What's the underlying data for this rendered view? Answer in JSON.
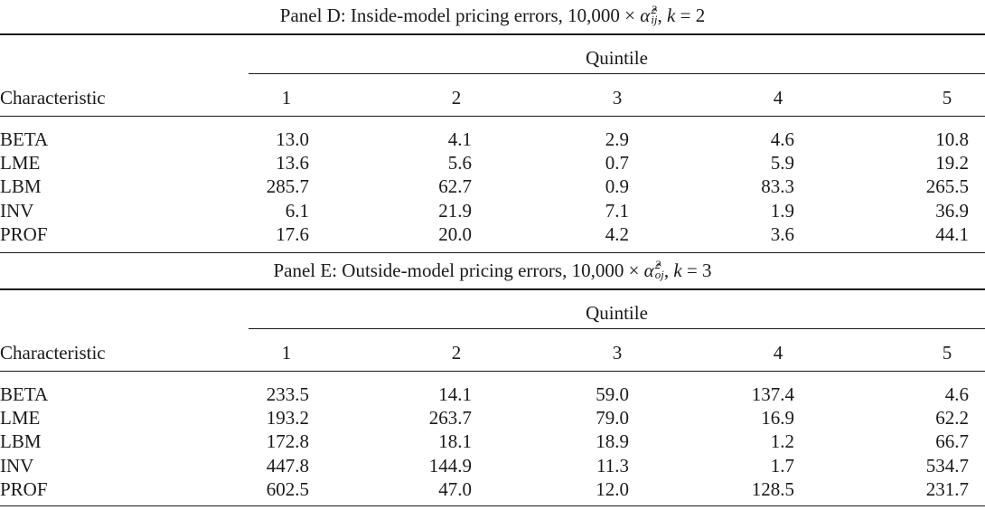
{
  "panels": [
    {
      "title_prefix": "Panel D: Inside-model pricing errors, 10,000 × ",
      "alpha_symbol": "α̂",
      "alpha_sup": "2",
      "alpha_sub": "ij",
      "title_suffix": ", ",
      "k_label": "k",
      "k_eq": " = 2",
      "quintile_header": "Quintile",
      "char_header": "Characteristic",
      "columns": [
        "1",
        "2",
        "3",
        "4",
        "5"
      ],
      "rows": [
        {
          "name": "BETA",
          "values": [
            "13.0",
            "4.1",
            "2.9",
            "4.6",
            "10.8"
          ]
        },
        {
          "name": "LME",
          "values": [
            "13.6",
            "5.6",
            "0.7",
            "5.9",
            "19.2"
          ]
        },
        {
          "name": "LBM",
          "values": [
            "285.7",
            "62.7",
            "0.9",
            "83.3",
            "265.5"
          ]
        },
        {
          "name": "INV",
          "values": [
            "6.1",
            "21.9",
            "7.1",
            "1.9",
            "36.9"
          ]
        },
        {
          "name": "PROF",
          "values": [
            "17.6",
            "20.0",
            "4.2",
            "3.6",
            "44.1"
          ]
        }
      ]
    },
    {
      "title_prefix": "Panel E: Outside-model pricing errors, 10,000 × ",
      "alpha_symbol": "α̂",
      "alpha_sup": "2",
      "alpha_sub": "oj",
      "title_suffix": ", ",
      "k_label": "k",
      "k_eq": " = 3",
      "quintile_header": "Quintile",
      "char_header": "Characteristic",
      "columns": [
        "1",
        "2",
        "3",
        "4",
        "5"
      ],
      "rows": [
        {
          "name": "BETA",
          "values": [
            "233.5",
            "14.1",
            "59.0",
            "137.4",
            "4.6"
          ]
        },
        {
          "name": "LME",
          "values": [
            "193.2",
            "263.7",
            "79.0",
            "16.9",
            "62.2"
          ]
        },
        {
          "name": "LBM",
          "values": [
            "172.8",
            "18.1",
            "18.9",
            "1.2",
            "66.7"
          ]
        },
        {
          "name": "INV",
          "values": [
            "447.8",
            "144.9",
            "11.3",
            "1.7",
            "534.7"
          ]
        },
        {
          "name": "PROF",
          "values": [
            "602.5",
            "47.0",
            "12.0",
            "128.5",
            "231.7"
          ]
        }
      ]
    }
  ]
}
